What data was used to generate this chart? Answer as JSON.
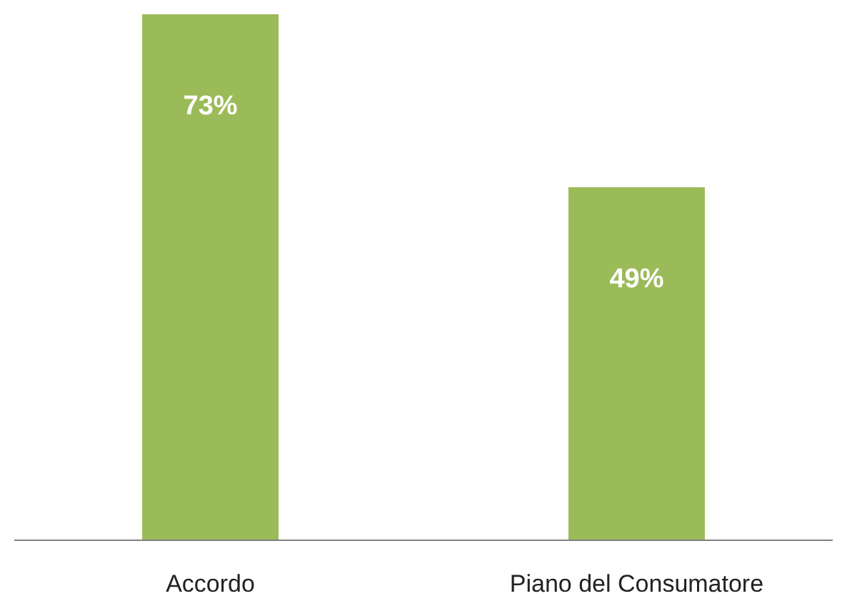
{
  "chart_data": {
    "type": "bar",
    "categories": [
      "Accordo",
      "Piano del Consumatore"
    ],
    "values": [
      73,
      49
    ],
    "value_labels": [
      "73%",
      "49%"
    ],
    "color": "#9bbb59"
  }
}
